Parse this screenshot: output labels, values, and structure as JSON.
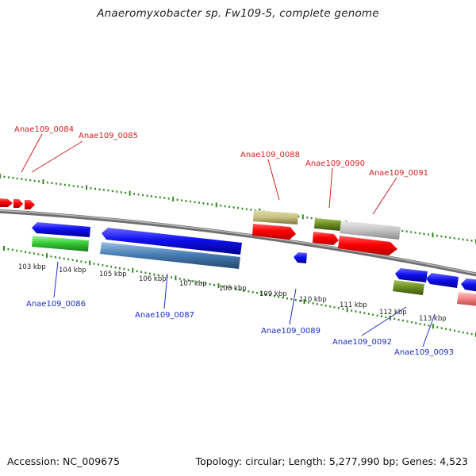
{
  "title": "Anaeromyxobacter sp. Fw109-5, complete genome",
  "footer": {
    "accession": "Accession: NC_009675",
    "topology": "Topology: circular; Length: 5,277,990 bp; Genes: 4,523"
  },
  "colors": {
    "backbone": "#8a8a8a",
    "ticks": "#2f8a1e",
    "label_top": "#d42020",
    "label_bottom": "#1a2fbf",
    "gene_red": "#f00000",
    "gene_blue": "#1010e8",
    "gene_green": "#33cc33",
    "gene_steel": "#4a7fb5",
    "gene_khaki": "#c8c080",
    "gene_olive": "#6a8c20",
    "gene_silver": "#c4c4c4",
    "gene_pink": "#f08080"
  },
  "kbp_labels": [
    "103 kbp",
    "104 kbp",
    "105 kbp",
    "106 kbp",
    "107 kbp",
    "108 kbp",
    "109 kbp",
    "110 kbp",
    "111 kbp",
    "112 kbp",
    "113 kbp"
  ],
  "gene_labels_top": [
    "Anae109_0084",
    "Anae109_0085",
    "Anae109_0088",
    "Anae109_0090",
    "Anae109_0091"
  ],
  "gene_labels_bottom": [
    "Anae109_0086",
    "Anae109_0087",
    "Anae109_0089",
    "Anae109_0092",
    "Anae109_0093"
  ]
}
